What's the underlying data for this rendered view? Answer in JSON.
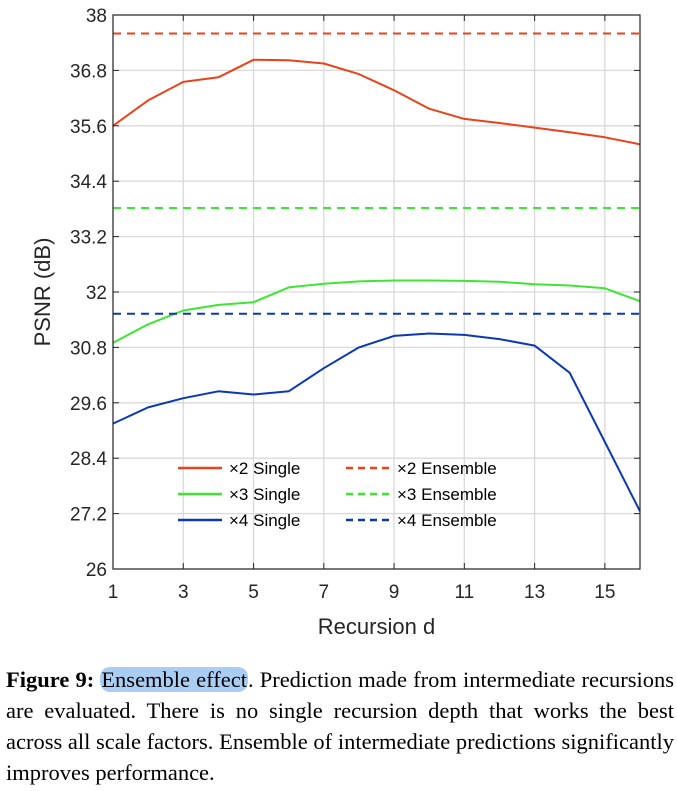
{
  "chart_data": {
    "type": "line",
    "title": "",
    "xlabel": "Recursion d",
    "ylabel": "PSNR (dB)",
    "xlim": [
      1,
      16
    ],
    "ylim": [
      26,
      38
    ],
    "xticks": [
      1,
      3,
      5,
      7,
      9,
      11,
      13,
      15
    ],
    "xtick_labels": [
      "1",
      "3",
      "5",
      "7",
      "9",
      "11",
      "13",
      "15"
    ],
    "yticks": [
      26,
      27.2,
      28.4,
      29.6,
      30.8,
      32,
      33.2,
      34.4,
      35.6,
      36.8,
      38
    ],
    "ytick_labels": [
      "26",
      "27.2",
      "28.4",
      "29.6",
      "30.8",
      "32",
      "33.2",
      "34.4",
      "35.6",
      "36.8",
      "38"
    ],
    "grid": true,
    "legend_position": "bottom-center",
    "x": [
      1,
      2,
      3,
      4,
      5,
      6,
      7,
      8,
      9,
      10,
      11,
      12,
      13,
      14,
      15,
      16
    ],
    "series": [
      {
        "name": "×2 Single",
        "color": "#e8431a",
        "style": "solid",
        "values": [
          35.6,
          36.15,
          36.55,
          36.65,
          37.03,
          37.02,
          36.95,
          36.72,
          36.37,
          35.97,
          35.75,
          35.66,
          35.56,
          35.46,
          35.35,
          35.2
        ]
      },
      {
        "name": "×3 Single",
        "color": "#3ee632",
        "style": "solid",
        "values": [
          30.9,
          31.3,
          31.6,
          31.72,
          31.78,
          32.1,
          32.18,
          32.23,
          32.25,
          32.25,
          32.24,
          32.22,
          32.17,
          32.14,
          32.08,
          31.8
        ]
      },
      {
        "name": "×4 Single",
        "color": "#0a39b0",
        "style": "solid",
        "values": [
          29.15,
          29.5,
          29.7,
          29.85,
          29.78,
          29.85,
          30.35,
          30.8,
          31.05,
          31.1,
          31.07,
          30.98,
          30.84,
          30.25,
          28.75,
          27.25
        ]
      },
      {
        "name": "×2 Ensemble",
        "color": "#e8431a",
        "style": "dashed",
        "constant": 37.6
      },
      {
        "name": "×3 Ensemble",
        "color": "#3ee632",
        "style": "dashed",
        "constant": 33.82
      },
      {
        "name": "×4 Ensemble",
        "color": "#0a39b0",
        "style": "dashed",
        "constant": 31.53
      }
    ]
  },
  "caption": {
    "label": "Figure 9:",
    "highlight": "Ensemble effect",
    "text": ".  Prediction made from intermediate recursions are evaluated.  There is no single recursion depth that works the best across all scale factors. Ensemble of intermediate predictions significantly improves performance."
  }
}
